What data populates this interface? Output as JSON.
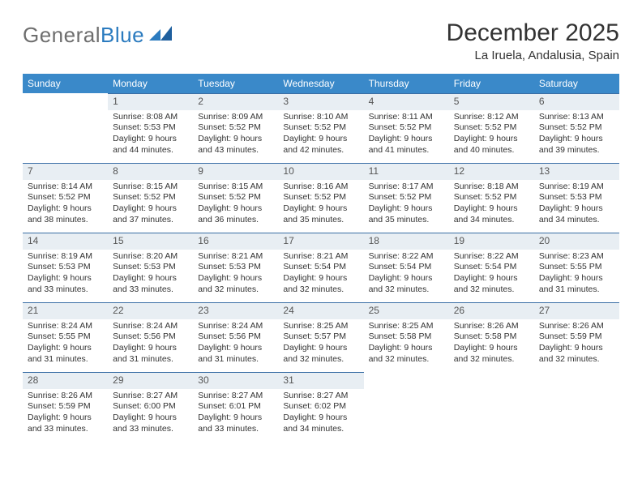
{
  "logo": {
    "word1": "General",
    "word2": "Blue"
  },
  "header": {
    "month_title": "December 2025",
    "location": "La Iruela, Andalusia, Spain"
  },
  "colors": {
    "header_bg": "#3a89c9",
    "daybar_bg": "#e8eef3",
    "daybar_border": "#3a6ea5",
    "logo_gray": "#6e6e6e",
    "logo_blue": "#2b7bbf"
  },
  "day_names": [
    "Sunday",
    "Monday",
    "Tuesday",
    "Wednesday",
    "Thursday",
    "Friday",
    "Saturday"
  ],
  "weeks": [
    [
      {
        "empty": true
      },
      {
        "day": "1",
        "sunrise": "Sunrise: 8:08 AM",
        "sunset": "Sunset: 5:53 PM",
        "daylight1": "Daylight: 9 hours",
        "daylight2": "and 44 minutes."
      },
      {
        "day": "2",
        "sunrise": "Sunrise: 8:09 AM",
        "sunset": "Sunset: 5:52 PM",
        "daylight1": "Daylight: 9 hours",
        "daylight2": "and 43 minutes."
      },
      {
        "day": "3",
        "sunrise": "Sunrise: 8:10 AM",
        "sunset": "Sunset: 5:52 PM",
        "daylight1": "Daylight: 9 hours",
        "daylight2": "and 42 minutes."
      },
      {
        "day": "4",
        "sunrise": "Sunrise: 8:11 AM",
        "sunset": "Sunset: 5:52 PM",
        "daylight1": "Daylight: 9 hours",
        "daylight2": "and 41 minutes."
      },
      {
        "day": "5",
        "sunrise": "Sunrise: 8:12 AM",
        "sunset": "Sunset: 5:52 PM",
        "daylight1": "Daylight: 9 hours",
        "daylight2": "and 40 minutes."
      },
      {
        "day": "6",
        "sunrise": "Sunrise: 8:13 AM",
        "sunset": "Sunset: 5:52 PM",
        "daylight1": "Daylight: 9 hours",
        "daylight2": "and 39 minutes."
      }
    ],
    [
      {
        "day": "7",
        "sunrise": "Sunrise: 8:14 AM",
        "sunset": "Sunset: 5:52 PM",
        "daylight1": "Daylight: 9 hours",
        "daylight2": "and 38 minutes."
      },
      {
        "day": "8",
        "sunrise": "Sunrise: 8:15 AM",
        "sunset": "Sunset: 5:52 PM",
        "daylight1": "Daylight: 9 hours",
        "daylight2": "and 37 minutes."
      },
      {
        "day": "9",
        "sunrise": "Sunrise: 8:15 AM",
        "sunset": "Sunset: 5:52 PM",
        "daylight1": "Daylight: 9 hours",
        "daylight2": "and 36 minutes."
      },
      {
        "day": "10",
        "sunrise": "Sunrise: 8:16 AM",
        "sunset": "Sunset: 5:52 PM",
        "daylight1": "Daylight: 9 hours",
        "daylight2": "and 35 minutes."
      },
      {
        "day": "11",
        "sunrise": "Sunrise: 8:17 AM",
        "sunset": "Sunset: 5:52 PM",
        "daylight1": "Daylight: 9 hours",
        "daylight2": "and 35 minutes."
      },
      {
        "day": "12",
        "sunrise": "Sunrise: 8:18 AM",
        "sunset": "Sunset: 5:52 PM",
        "daylight1": "Daylight: 9 hours",
        "daylight2": "and 34 minutes."
      },
      {
        "day": "13",
        "sunrise": "Sunrise: 8:19 AM",
        "sunset": "Sunset: 5:53 PM",
        "daylight1": "Daylight: 9 hours",
        "daylight2": "and 34 minutes."
      }
    ],
    [
      {
        "day": "14",
        "sunrise": "Sunrise: 8:19 AM",
        "sunset": "Sunset: 5:53 PM",
        "daylight1": "Daylight: 9 hours",
        "daylight2": "and 33 minutes."
      },
      {
        "day": "15",
        "sunrise": "Sunrise: 8:20 AM",
        "sunset": "Sunset: 5:53 PM",
        "daylight1": "Daylight: 9 hours",
        "daylight2": "and 33 minutes."
      },
      {
        "day": "16",
        "sunrise": "Sunrise: 8:21 AM",
        "sunset": "Sunset: 5:53 PM",
        "daylight1": "Daylight: 9 hours",
        "daylight2": "and 32 minutes."
      },
      {
        "day": "17",
        "sunrise": "Sunrise: 8:21 AM",
        "sunset": "Sunset: 5:54 PM",
        "daylight1": "Daylight: 9 hours",
        "daylight2": "and 32 minutes."
      },
      {
        "day": "18",
        "sunrise": "Sunrise: 8:22 AM",
        "sunset": "Sunset: 5:54 PM",
        "daylight1": "Daylight: 9 hours",
        "daylight2": "and 32 minutes."
      },
      {
        "day": "19",
        "sunrise": "Sunrise: 8:22 AM",
        "sunset": "Sunset: 5:54 PM",
        "daylight1": "Daylight: 9 hours",
        "daylight2": "and 32 minutes."
      },
      {
        "day": "20",
        "sunrise": "Sunrise: 8:23 AM",
        "sunset": "Sunset: 5:55 PM",
        "daylight1": "Daylight: 9 hours",
        "daylight2": "and 31 minutes."
      }
    ],
    [
      {
        "day": "21",
        "sunrise": "Sunrise: 8:24 AM",
        "sunset": "Sunset: 5:55 PM",
        "daylight1": "Daylight: 9 hours",
        "daylight2": "and 31 minutes."
      },
      {
        "day": "22",
        "sunrise": "Sunrise: 8:24 AM",
        "sunset": "Sunset: 5:56 PM",
        "daylight1": "Daylight: 9 hours",
        "daylight2": "and 31 minutes."
      },
      {
        "day": "23",
        "sunrise": "Sunrise: 8:24 AM",
        "sunset": "Sunset: 5:56 PM",
        "daylight1": "Daylight: 9 hours",
        "daylight2": "and 31 minutes."
      },
      {
        "day": "24",
        "sunrise": "Sunrise: 8:25 AM",
        "sunset": "Sunset: 5:57 PM",
        "daylight1": "Daylight: 9 hours",
        "daylight2": "and 32 minutes."
      },
      {
        "day": "25",
        "sunrise": "Sunrise: 8:25 AM",
        "sunset": "Sunset: 5:58 PM",
        "daylight1": "Daylight: 9 hours",
        "daylight2": "and 32 minutes."
      },
      {
        "day": "26",
        "sunrise": "Sunrise: 8:26 AM",
        "sunset": "Sunset: 5:58 PM",
        "daylight1": "Daylight: 9 hours",
        "daylight2": "and 32 minutes."
      },
      {
        "day": "27",
        "sunrise": "Sunrise: 8:26 AM",
        "sunset": "Sunset: 5:59 PM",
        "daylight1": "Daylight: 9 hours",
        "daylight2": "and 32 minutes."
      }
    ],
    [
      {
        "day": "28",
        "sunrise": "Sunrise: 8:26 AM",
        "sunset": "Sunset: 5:59 PM",
        "daylight1": "Daylight: 9 hours",
        "daylight2": "and 33 minutes."
      },
      {
        "day": "29",
        "sunrise": "Sunrise: 8:27 AM",
        "sunset": "Sunset: 6:00 PM",
        "daylight1": "Daylight: 9 hours",
        "daylight2": "and 33 minutes."
      },
      {
        "day": "30",
        "sunrise": "Sunrise: 8:27 AM",
        "sunset": "Sunset: 6:01 PM",
        "daylight1": "Daylight: 9 hours",
        "daylight2": "and 33 minutes."
      },
      {
        "day": "31",
        "sunrise": "Sunrise: 8:27 AM",
        "sunset": "Sunset: 6:02 PM",
        "daylight1": "Daylight: 9 hours",
        "daylight2": "and 34 minutes."
      },
      {
        "empty": true
      },
      {
        "empty": true
      },
      {
        "empty": true
      }
    ]
  ]
}
